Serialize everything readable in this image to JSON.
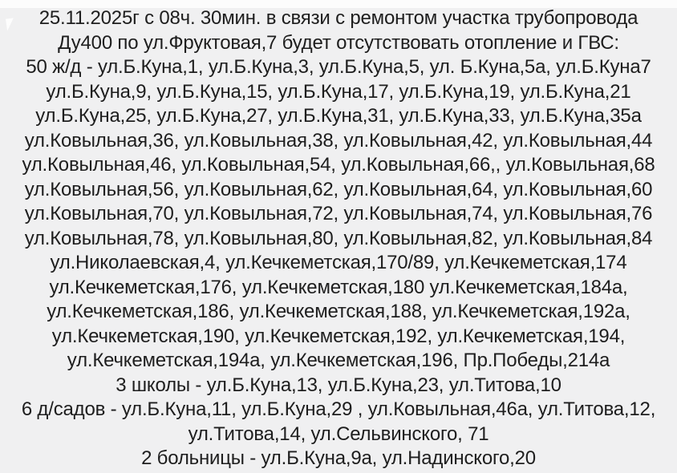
{
  "colors": {
    "background": "#f0f0f1",
    "top_strip": "#fcfcfc",
    "text": "#1e1e1e"
  },
  "notice": {
    "lines": [
      "25.11.2025г с 08ч. 30мин. в связи с ремонтом участка трубопровода",
      "Ду400 по ул.Фруктовая,7 будет отсутствовать отопление и ГВС:",
      "50 ж/д - ул.Б.Куна,1, ул.Б.Куна,3, ул.Б.Куна,5, ул. Б.Куна,5а, ул.Б.Куна7",
      "ул.Б.Куна,9, ул.Б.Куна,15, ул.Б.Куна,17, ул.Б.Куна,19, ул.Б.Куна,21",
      "ул.Б.Куна,25, ул.Б.Куна,27, ул.Б.Куна,31, ул.Б.Куна,33, ул.Б.Куна,35а",
      "ул.Ковыльная,36, ул.Ковыльная,38, ул.Ковыльная,42, ул.Ковыльная,44",
      "ул.Ковыльная,46, ул.Ковыльная,54, ул.Ковыльная,66,, ул.Ковыльная,68",
      "ул.Ковыльная,56, ул.Ковыльная,62, ул.Ковыльная,64, ул.Ковыльная,60",
      "ул.Ковыльная,70, ул.Ковыльная,72, ул.Ковыльная,74, ул.Ковыльная,76",
      "ул.Ковыльная,78, ул.Ковыльная,80, ул.Ковыльная,82, ул.Ковыльная,84",
      "ул.Николаевская,4, ул.Кечкеметская,170/89, ул.Кечкеметская,174",
      "ул.Кечкеметская,176, ул.Кечкеметская,180 ул.Кечкеметская,184а,",
      "ул.Кечкеметская,186, ул.Кечкеметская,188, ул.Кечкеметская,192а,",
      "ул.Кечкеметская,190, ул.Кечкеметская,192, ул.Кечкеметская,194,",
      "ул.Кечкеметская,194а, ул.Кечкеметская,196, Пр.Победы,214а",
      "3 школы - ул.Б.Куна,13, ул.Б.Куна,23, ул.Титова,10",
      "6 д/садов - ул.Б.Куна,11, ул.Б.Куна,29 , ул.Ковыльная,46а, ул.Титова,12,",
      "ул.Титова,14, ул.Сельвинского, 71",
      "2 больницы - ул.Б.Куна,9а, ул.Надинского,20"
    ]
  }
}
